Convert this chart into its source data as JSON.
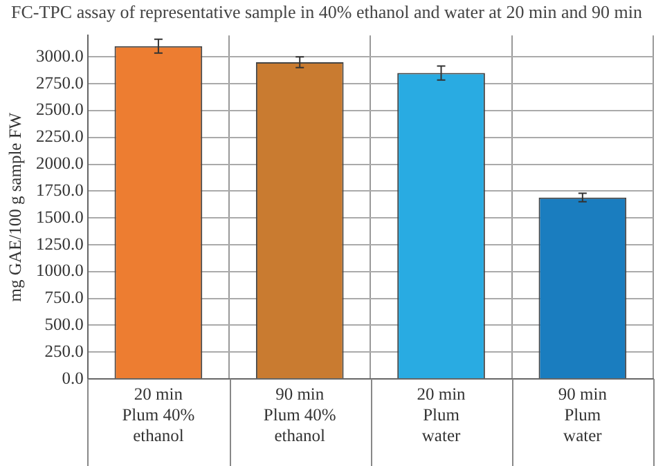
{
  "chart_data": {
    "type": "bar",
    "title": "FC-TPC assay of representative sample in 40% ethanol and water at 20 min and 90 min",
    "ylabel": "mg GAE/100 g sample FW",
    "categories": [
      "20 min\nPlum 40%\nethanol",
      "90 min\nPlum 40%\nethanol",
      "20 min\nPlum\nwater",
      "90 min\nPlum\nwater"
    ],
    "values": [
      3100,
      2950,
      2850,
      1690
    ],
    "errors": [
      65,
      50,
      65,
      40
    ],
    "colors": [
      "#ed7d31",
      "#c97b30",
      "#29abe2",
      "#1a7dbf"
    ],
    "ylim": [
      0,
      3200
    ],
    "yticks": [
      {
        "value": 0,
        "label": "0.0"
      },
      {
        "value": 250,
        "label": "250.0"
      },
      {
        "value": 500,
        "label": "500.0"
      },
      {
        "value": 750,
        "label": "750.0"
      },
      {
        "value": 1000,
        "label": "1000.0"
      },
      {
        "value": 1250,
        "label": "1250.0"
      },
      {
        "value": 1500,
        "label": "1500.0"
      },
      {
        "value": 1750,
        "label": "1750.0"
      },
      {
        "value": 2000,
        "label": "2000.0"
      },
      {
        "value": 2250,
        "label": "2250.0"
      },
      {
        "value": 2500,
        "label": "2500.0"
      },
      {
        "value": 2750,
        "label": "2750.0"
      },
      {
        "value": 3000,
        "label": "3000.0"
      }
    ],
    "grid": true
  }
}
